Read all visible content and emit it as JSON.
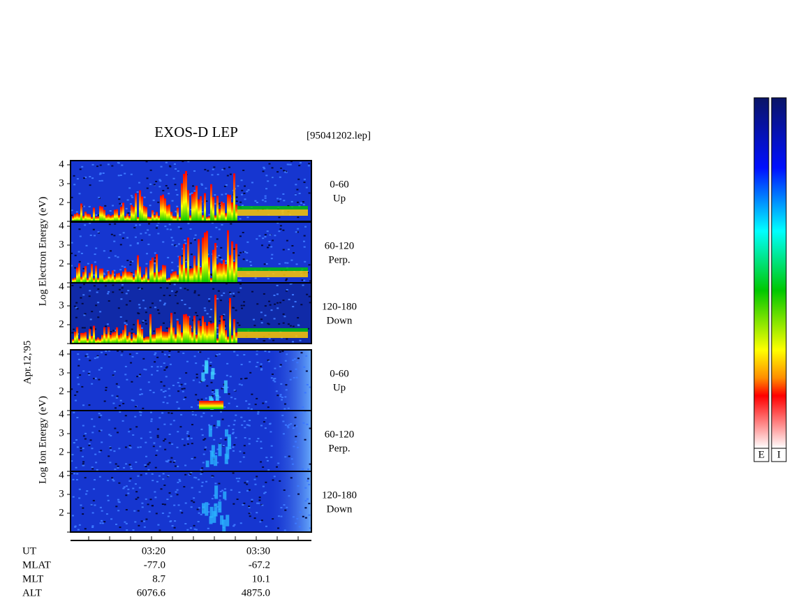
{
  "header": {
    "title": "EXOS-D LEP",
    "file": "[95041202.lep]"
  },
  "date": "Apr.12,'95",
  "groups": [
    {
      "axis_label": "Log Electron Energy (eV)",
      "panels": [
        {
          "label": "0-60",
          "direction": "Up",
          "ticks": [
            "4",
            "3",
            "2"
          ]
        },
        {
          "label": "60-120",
          "direction": "Perp.",
          "ticks": [
            "4",
            "3",
            "2"
          ]
        },
        {
          "label": "120-180",
          "direction": "Down",
          "ticks": [
            "4",
            "3",
            "2"
          ]
        }
      ]
    },
    {
      "axis_label": "Log Ion Energy (eV)",
      "panels": [
        {
          "label": "0-60",
          "direction": "Up",
          "ticks": [
            "4",
            "3",
            "2"
          ]
        },
        {
          "label": "60-120",
          "direction": "Perp.",
          "ticks": [
            "4",
            "3",
            "2"
          ]
        },
        {
          "label": "120-180",
          "direction": "Down",
          "ticks": [
            "4",
            "3",
            "2"
          ]
        }
      ]
    }
  ],
  "time_axis": {
    "rows": [
      {
        "label": "UT",
        "values": [
          "03:20",
          "03:30"
        ]
      },
      {
        "label": "MLAT",
        "values": [
          "-77.0",
          "-67.2"
        ]
      },
      {
        "label": "MLT",
        "values": [
          "8.7",
          "10.1"
        ]
      },
      {
        "label": "ALT",
        "values": [
          "6076.6",
          "4875.0"
        ]
      }
    ]
  },
  "colorbars": [
    "E",
    "I"
  ]
}
